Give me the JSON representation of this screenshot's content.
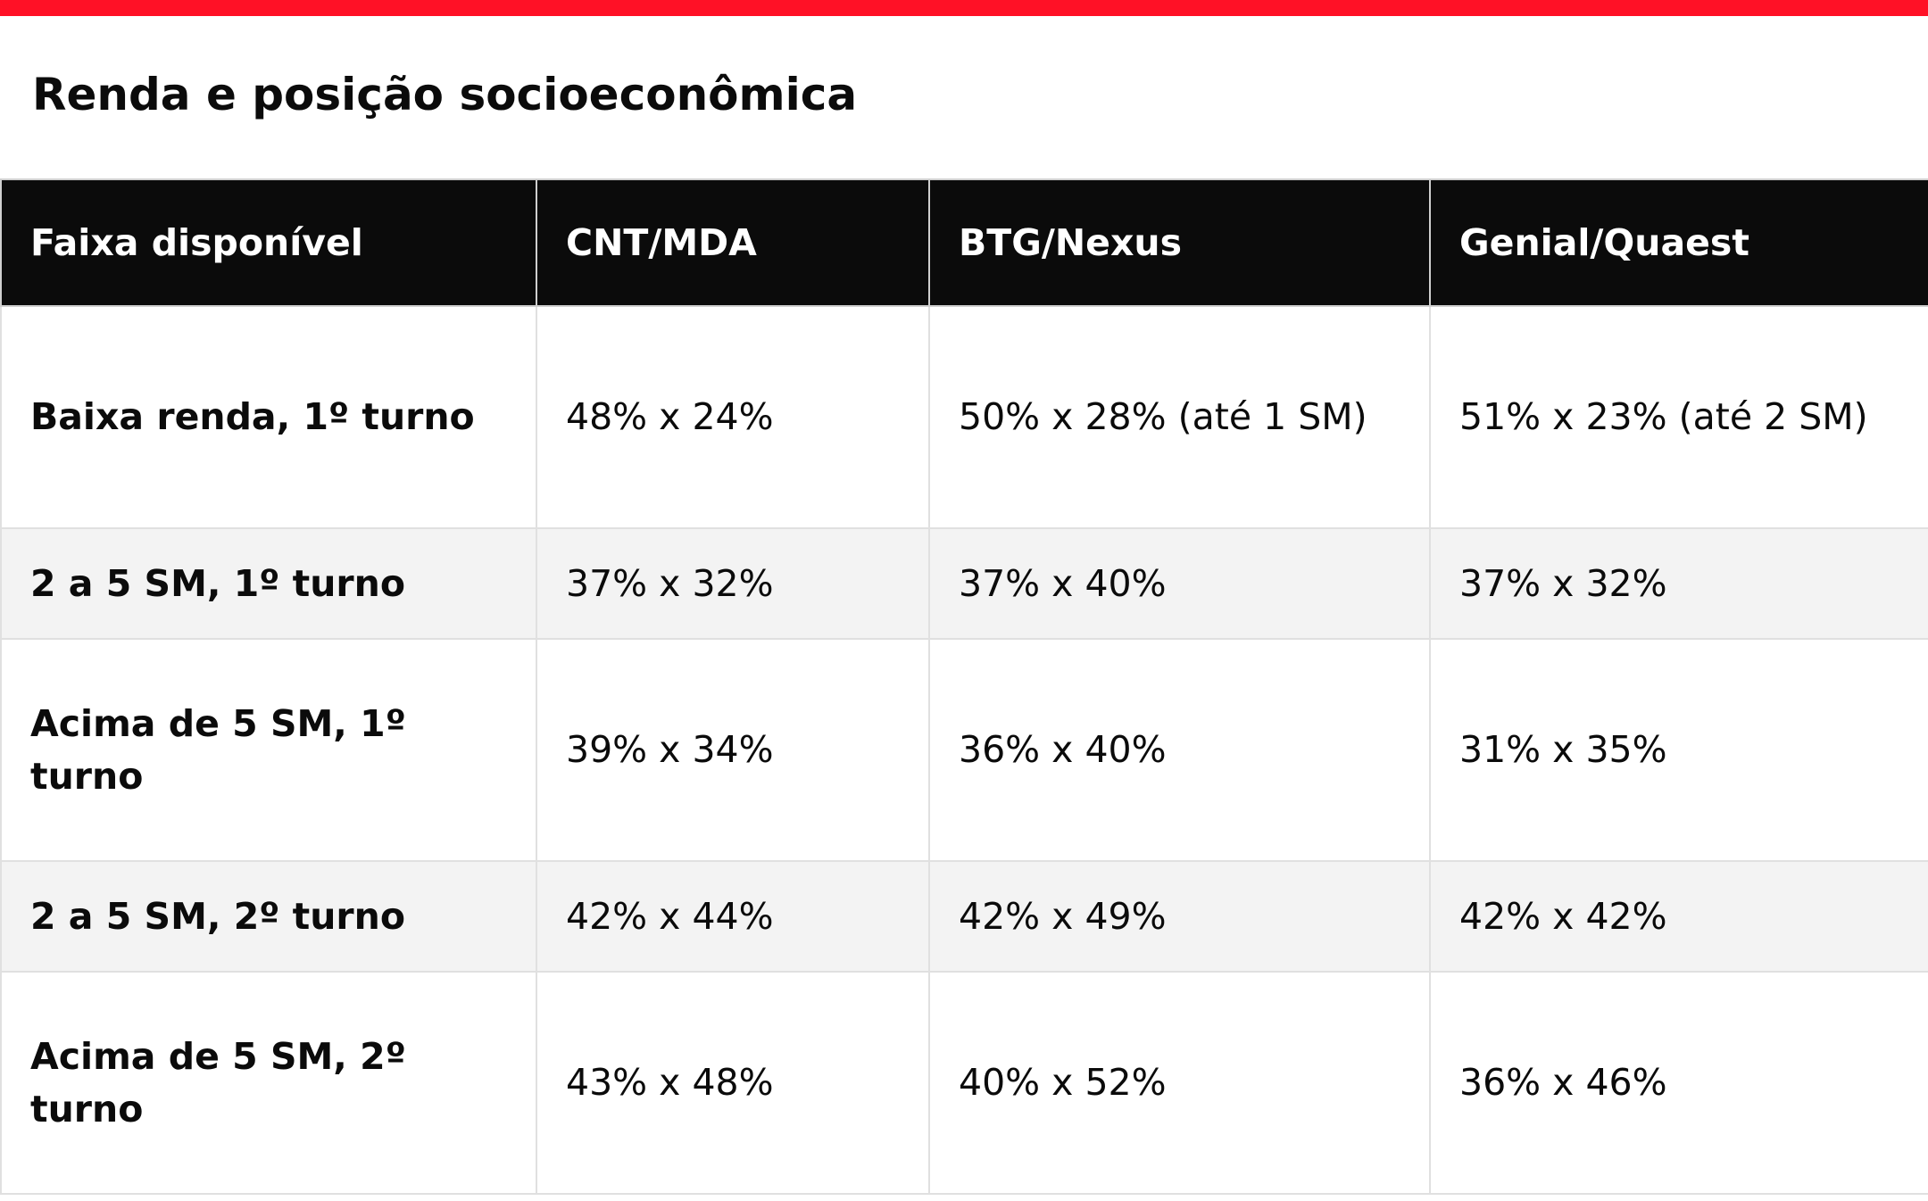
{
  "title": "Renda e posição socioeconômica",
  "table": {
    "header": [
      "Faixa disponível",
      "CNT/MDA",
      "BTG/Nexus",
      "Genial/Quaest"
    ],
    "rows": [
      [
        "Baixa renda, 1º turno",
        "48% x 24%",
        "50% x 28% (até 1 SM)",
        "51% x 23% (até 2 SM)"
      ],
      [
        "2 a 5 SM, 1º turno",
        "37% x 32%",
        "37% x 40%",
        "37% x 32%"
      ],
      [
        "Acima de 5 SM, 1º turno",
        "39% x 34%",
        "36% x 40%",
        "31% x 35%"
      ],
      [
        "2 a 5 SM, 2º turno",
        "42% x 44%",
        "42% x 49%",
        "42% x 42%"
      ],
      [
        "Acima de 5 SM, 2º turno",
        "43% x 48%",
        "40% x 52%",
        "36% x 46%"
      ]
    ]
  }
}
